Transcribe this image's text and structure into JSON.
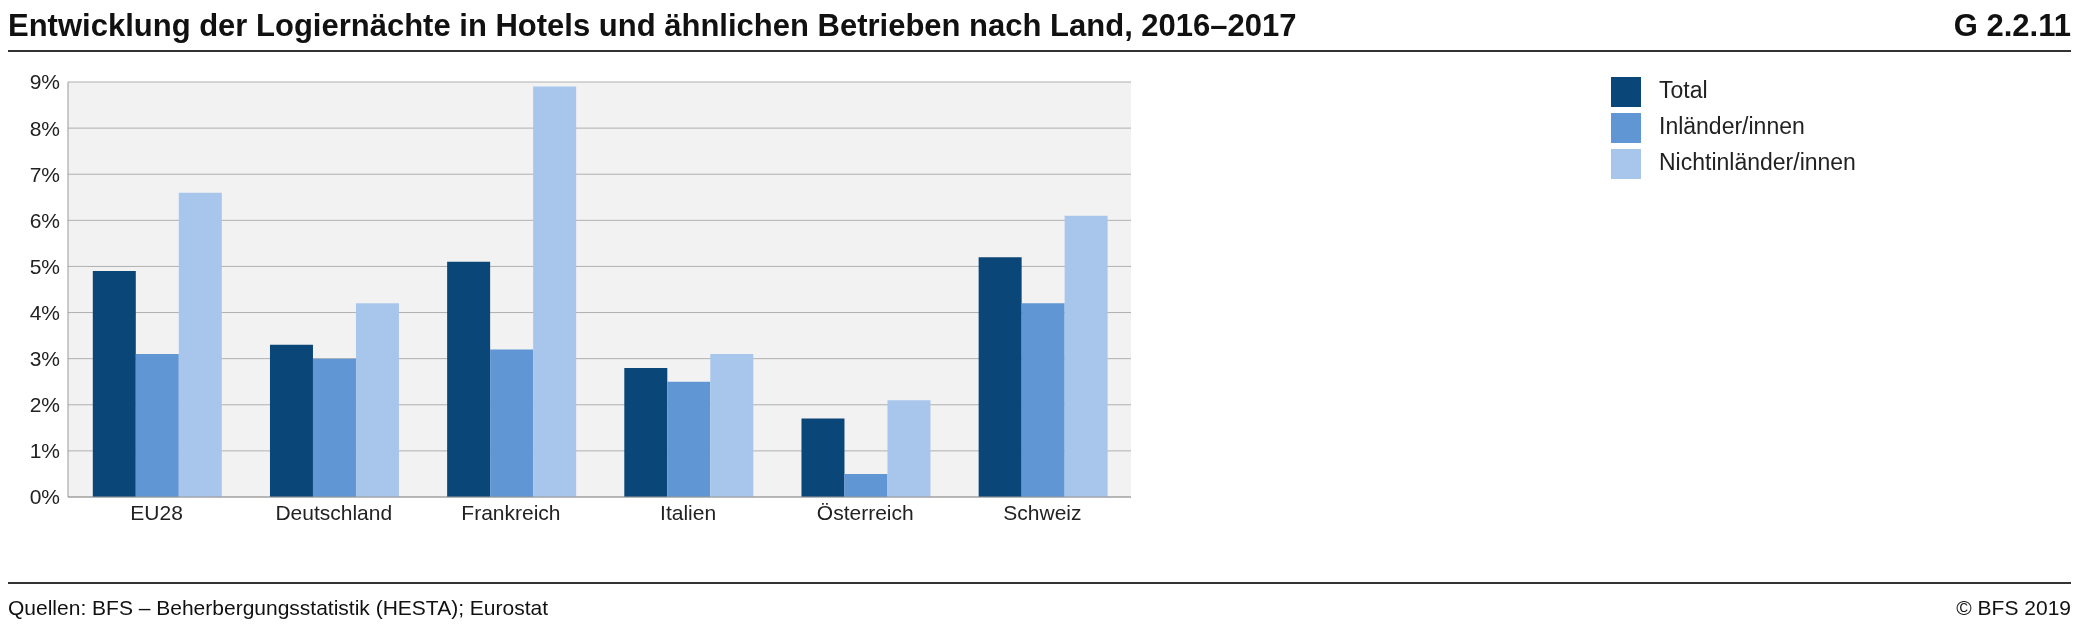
{
  "chart_data": {
    "type": "bar",
    "title": "Entwicklung der Logiernächte in Hotels und ähnlichen Betrieben nach Land, 2016–2017",
    "categories": [
      "EU28",
      "Deutschland",
      "Frankreich",
      "Italien",
      "Österreich",
      "Schweiz"
    ],
    "series": [
      {
        "name": "Total",
        "color": "#0b4678",
        "values": [
          4.9,
          3.3,
          5.1,
          2.8,
          1.7,
          5.2
        ]
      },
      {
        "name": "Inländer/innen",
        "color": "#6196d4",
        "values": [
          3.1,
          3.0,
          3.2,
          2.5,
          0.5,
          4.2
        ]
      },
      {
        "name": "Nichtinländer/innen",
        "color": "#a8c6ec",
        "values": [
          6.6,
          4.2,
          8.9,
          3.1,
          2.1,
          6.1
        ]
      }
    ],
    "ylim": [
      0,
      9
    ],
    "yticks": [
      {
        "value": 0,
        "label": "0%"
      },
      {
        "value": 1,
        "label": "1%"
      },
      {
        "value": 2,
        "label": "2%"
      },
      {
        "value": 3,
        "label": "3%"
      },
      {
        "value": 4,
        "label": "4%"
      },
      {
        "value": 5,
        "label": "5%"
      },
      {
        "value": 6,
        "label": "6%"
      },
      {
        "value": 7,
        "label": "7%"
      },
      {
        "value": 8,
        "label": "8%"
      },
      {
        "value": 9,
        "label": "9%"
      }
    ],
    "grid": "y",
    "legend": "top right",
    "annotations": [
      "G 2.2.11",
      "Quellen: BFS – Beherbergungsstatistik (HESTA); Eurostat",
      "© BFS 2019"
    ]
  }
}
